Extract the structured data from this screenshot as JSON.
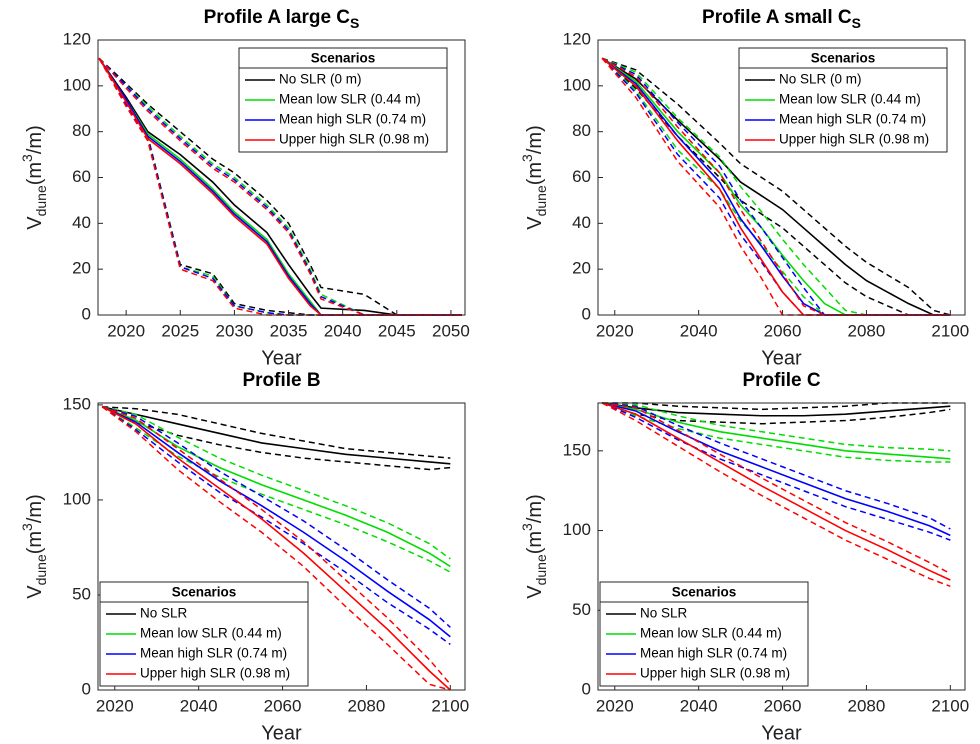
{
  "chart_data": [
    {
      "type": "line",
      "title": "Profile A large C",
      "title_subscript": "S",
      "xlabel": "Year",
      "ylabel": [
        "V",
        "dune",
        "(m",
        "3",
        "/m)"
      ],
      "x": [
        2017.5,
        2020,
        2022,
        2025,
        2028,
        2030,
        2033,
        2035,
        2037,
        2038,
        2042,
        2045,
        2051
      ],
      "xlim": [
        2017.4,
        2051.3
      ],
      "ylim": [
        0,
        120
      ],
      "xticks": [
        2020,
        2025,
        2030,
        2035,
        2040,
        2045,
        2050
      ],
      "yticks": [
        0,
        20,
        40,
        60,
        80,
        100,
        120
      ],
      "legend": "upper right",
      "legend_title": "Scenarios",
      "series": [
        {
          "name": "No SLR (0 m)",
          "color": "#000000",
          "values": [
            112,
            95,
            80,
            70,
            58,
            48,
            36,
            22,
            9,
            3,
            2,
            0,
            0
          ],
          "lower": [
            112,
            93,
            78,
            22,
            18,
            5,
            2,
            1,
            0,
            0,
            0,
            0,
            0
          ],
          "upper": [
            112,
            101,
            92,
            80,
            68,
            62,
            50,
            40,
            22,
            12,
            9,
            0,
            0
          ]
        },
        {
          "name": "Mean low SLR (0.44 m)",
          "color": "#00dd00",
          "values": [
            112,
            94,
            79,
            68,
            55,
            45,
            33,
            18,
            6,
            0,
            0,
            0,
            0
          ],
          "lower": [
            112,
            92,
            77,
            21,
            17,
            4,
            1,
            0,
            0,
            0,
            0,
            0,
            0
          ],
          "upper": [
            112,
            100,
            91,
            78,
            66,
            60,
            48,
            38,
            20,
            9,
            0,
            0,
            0
          ]
        },
        {
          "name": "Mean high SLR (0.74 m)",
          "color": "#0000ff",
          "values": [
            112,
            94,
            78,
            67,
            54,
            44,
            32,
            17,
            5,
            0,
            0,
            0,
            0
          ],
          "lower": [
            112,
            92,
            77,
            21,
            16,
            4,
            1,
            0,
            0,
            0,
            0,
            0,
            0
          ],
          "upper": [
            112,
            100,
            90,
            77,
            65,
            59,
            47,
            37,
            19,
            8,
            0,
            0,
            0
          ]
        },
        {
          "name": "Upper high SLR (0.98 m)",
          "color": "#ff0000",
          "values": [
            112,
            93,
            77,
            66,
            53,
            43,
            31,
            16,
            4,
            0,
            0,
            0,
            0
          ],
          "lower": [
            112,
            91,
            76,
            20,
            15,
            3,
            0,
            0,
            0,
            0,
            0,
            0,
            0
          ],
          "upper": [
            112,
            99,
            89,
            76,
            64,
            58,
            46,
            36,
            18,
            7,
            0,
            0,
            0
          ]
        }
      ]
    },
    {
      "type": "line",
      "title": "Profile A small C",
      "title_subscript": "S",
      "xlabel": "Year",
      "ylabel": [
        "V",
        "dune",
        "(m",
        "3",
        "/m)"
      ],
      "x": [
        2017,
        2025,
        2035,
        2045,
        2050,
        2055,
        2060,
        2065,
        2070,
        2075,
        2080,
        2090,
        2096,
        2100
      ],
      "xlim": [
        2016,
        2103.5
      ],
      "ylim": [
        0,
        120
      ],
      "xticks": [
        2020,
        2040,
        2060,
        2080,
        2100
      ],
      "yticks": [
        0,
        20,
        40,
        60,
        80,
        100,
        120
      ],
      "legend": "upper right",
      "legend_title": "Scenarios",
      "series": [
        {
          "name": "No SLR (0 m)",
          "color": "#000000",
          "values": [
            112,
            103,
            85,
            68,
            58,
            52,
            46,
            38,
            30,
            22,
            15,
            5,
            0,
            0
          ],
          "lower": [
            112,
            99,
            78,
            60,
            50,
            44,
            38,
            30,
            22,
            14,
            8,
            0,
            0,
            0
          ],
          "upper": [
            112,
            107,
            92,
            75,
            66,
            60,
            54,
            46,
            38,
            30,
            23,
            12,
            2,
            0
          ]
        },
        {
          "name": "Mean low SLR (0.44 m)",
          "color": "#00dd00",
          "values": [
            112,
            102,
            80,
            62,
            48,
            38,
            26,
            15,
            5,
            0,
            0,
            0,
            0,
            0
          ],
          "lower": [
            112,
            98,
            72,
            55,
            41,
            31,
            19,
            8,
            0,
            0,
            0,
            0,
            0,
            0
          ],
          "upper": [
            112,
            106,
            86,
            69,
            56,
            45,
            33,
            22,
            12,
            2,
            0,
            0,
            0,
            0
          ]
        },
        {
          "name": "Mean high SLR (0.74 m)",
          "color": "#0000ff",
          "values": [
            112,
            101,
            78,
            58,
            42,
            30,
            17,
            5,
            0,
            0,
            0,
            0,
            0,
            0
          ],
          "lower": [
            112,
            97,
            70,
            51,
            35,
            23,
            10,
            0,
            0,
            0,
            0,
            0,
            0,
            0
          ],
          "upper": [
            112,
            105,
            84,
            65,
            50,
            38,
            25,
            12,
            0,
            0,
            0,
            0,
            0,
            0
          ]
        },
        {
          "name": "Upper high SLR (0.98 m)",
          "color": "#ff0000",
          "values": [
            112,
            100,
            76,
            55,
            38,
            24,
            10,
            0,
            0,
            0,
            0,
            0,
            0,
            0
          ],
          "lower": [
            112,
            95,
            67,
            47,
            30,
            16,
            0,
            0,
            0,
            0,
            0,
            0,
            0,
            0
          ],
          "upper": [
            112,
            104,
            82,
            62,
            46,
            32,
            18,
            4,
            0,
            0,
            0,
            0,
            0,
            0
          ]
        }
      ]
    },
    {
      "type": "line",
      "title": "Profile B",
      "xlabel": "Year",
      "ylabel": [
        "V",
        "dune",
        "(m",
        "3",
        "/m)"
      ],
      "x": [
        2017,
        2025,
        2035,
        2045,
        2055,
        2065,
        2075,
        2085,
        2095,
        2100
      ],
      "xlim": [
        2016,
        2103.5
      ],
      "ylim": [
        0,
        151
      ],
      "xticks": [
        2020,
        2040,
        2060,
        2080,
        2100
      ],
      "yticks": [
        0,
        50,
        100,
        150
      ],
      "legend": "lower left",
      "legend_title": "Scenarios",
      "series": [
        {
          "name": "No SLR",
          "color": "#000000",
          "values": [
            149,
            145,
            140,
            135,
            130,
            127,
            124,
            122,
            120,
            119
          ],
          "lower": [
            149,
            141,
            134,
            129,
            125,
            122,
            120,
            118,
            116,
            117
          ],
          "upper": [
            149,
            148,
            145,
            140,
            135,
            131,
            127,
            125,
            123,
            122
          ]
        },
        {
          "name": "Mean low SLR (0.44 m)",
          "color": "#00dd00",
          "values": [
            149,
            142,
            128,
            117,
            108,
            100,
            92,
            83,
            72,
            65
          ],
          "lower": [
            149,
            138,
            123,
            112,
            103,
            95,
            87,
            78,
            68,
            62
          ],
          "upper": [
            149,
            145,
            133,
            122,
            113,
            105,
            97,
            88,
            77,
            69
          ]
        },
        {
          "name": "Mean high SLR (0.74 m)",
          "color": "#0000ff",
          "values": [
            149,
            141,
            125,
            110,
            97,
            83,
            68,
            52,
            37,
            28
          ],
          "lower": [
            149,
            137,
            120,
            104,
            91,
            77,
            62,
            46,
            32,
            24
          ],
          "upper": [
            149,
            144,
            130,
            115,
            102,
            89,
            74,
            58,
            43,
            33
          ]
        },
        {
          "name": "Upper high SLR (0.98 m)",
          "color": "#ff0000",
          "values": [
            149,
            140,
            122,
            106,
            90,
            72,
            52,
            32,
            10,
            0
          ],
          "lower": [
            149,
            136,
            116,
            99,
            83,
            65,
            44,
            24,
            3,
            0
          ],
          "upper": [
            149,
            143,
            127,
            111,
            95,
            78,
            58,
            38,
            16,
            3
          ]
        }
      ]
    },
    {
      "type": "line",
      "title": "Profile C",
      "xlabel": "Year",
      "ylabel": [
        "V",
        "dune",
        "(m",
        "3",
        "/m)"
      ],
      "x": [
        2017,
        2025,
        2035,
        2045,
        2055,
        2065,
        2075,
        2085,
        2095,
        2100
      ],
      "xlim": [
        2016,
        2103.5
      ],
      "ylim": [
        0,
        180
      ],
      "xticks": [
        2020,
        2040,
        2060,
        2080,
        2100
      ],
      "yticks": [
        0,
        50,
        100,
        150
      ],
      "legend": "lower left",
      "legend_title": "Scenarios",
      "series": [
        {
          "name": "No SLR",
          "color": "#000000",
          "values": [
            180,
            177,
            174,
            173,
            172,
            172,
            173,
            175,
            177,
            178
          ],
          "lower": [
            180,
            173,
            169,
            168,
            167,
            168,
            169,
            171,
            174,
            176
          ],
          "upper": [
            180,
            180,
            178,
            177,
            176,
            177,
            178,
            180,
            180,
            180
          ]
        },
        {
          "name": "Mean low SLR (0.44 m)",
          "color": "#00dd00",
          "values": [
            180,
            176,
            168,
            162,
            158,
            154,
            150,
            148,
            146,
            145
          ],
          "lower": [
            180,
            172,
            164,
            158,
            154,
            150,
            146,
            144,
            143,
            143
          ],
          "upper": [
            180,
            179,
            172,
            166,
            162,
            158,
            154,
            152,
            151,
            150
          ]
        },
        {
          "name": "Mean high SLR (0.74 m)",
          "color": "#0000ff",
          "values": [
            180,
            175,
            162,
            150,
            140,
            130,
            120,
            112,
            103,
            97
          ],
          "lower": [
            180,
            171,
            157,
            145,
            135,
            125,
            115,
            107,
            99,
            94
          ],
          "upper": [
            180,
            178,
            166,
            155,
            145,
            135,
            125,
            117,
            108,
            101
          ]
        },
        {
          "name": "Upper high SLR (0.98 m)",
          "color": "#ff0000",
          "values": [
            180,
            173,
            158,
            143,
            128,
            114,
            100,
            88,
            75,
            69
          ],
          "lower": [
            180,
            169,
            153,
            137,
            122,
            108,
            94,
            82,
            70,
            65
          ],
          "upper": [
            180,
            177,
            163,
            148,
            133,
            119,
            105,
            93,
            80,
            73
          ]
        }
      ]
    }
  ]
}
